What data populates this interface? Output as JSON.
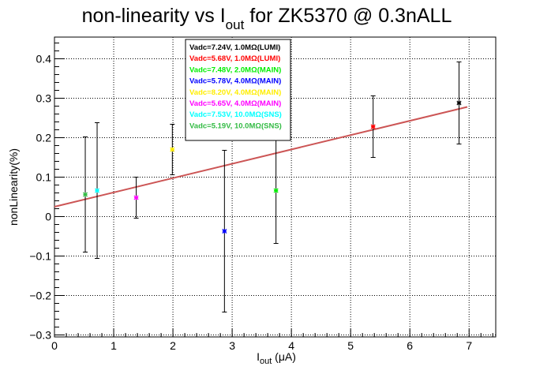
{
  "chart_data": {
    "type": "scatter",
    "title": {
      "pre": "non-linearity vs I",
      "sub": "out",
      "post": " for ZK5370 @ 0.3nALL"
    },
    "xlabel": {
      "main": "I",
      "sub": "out",
      "post": " (μA)"
    },
    "ylabel": "nonLinearity(%)",
    "xlim": [
      0,
      7.45
    ],
    "ylim": [
      -0.305,
      0.455
    ],
    "xticks": [
      "0",
      "1",
      "2",
      "3",
      "4",
      "5",
      "6",
      "7"
    ],
    "yticks": [
      "−0.3",
      "−0.2",
      "−0.1",
      "0",
      "0.1",
      "0.2",
      "0.3",
      "0.4"
    ],
    "grid": true,
    "legend_position": "top-left",
    "series": [
      {
        "name": "Vadc=7.24V, 1.0MΩ(LUMI)",
        "color": "#000000",
        "points": [
          {
            "x": 6.83,
            "y": 0.288,
            "err": 0.104
          }
        ]
      },
      {
        "name": "Vadc=5.68V, 1.0MΩ(LUMI)",
        "color": "#ff0000",
        "points": [
          {
            "x": 5.38,
            "y": 0.228,
            "err": 0.078
          }
        ]
      },
      {
        "name": "Vadc=7.48V, 2.0MΩ(MAIN)",
        "color": "#00ee00",
        "points": [
          {
            "x": 3.74,
            "y": 0.066,
            "err": 0.134
          }
        ]
      },
      {
        "name": "Vadc=5.78V, 4.0MΩ(MAIN)",
        "color": "#0000ff",
        "points": [
          {
            "x": 2.87,
            "y": -0.037,
            "err": 0.205
          }
        ]
      },
      {
        "name": "Vadc=8.20V, 4.0MΩ(MAIN)",
        "color": "#ffee00",
        "points": [
          {
            "x": 1.99,
            "y": 0.17,
            "err": 0.064
          }
        ]
      },
      {
        "name": "Vadc=5.65V, 4.0MΩ(MAIN)",
        "color": "#ff00ff",
        "points": [
          {
            "x": 1.38,
            "y": 0.048,
            "err": 0.052
          }
        ]
      },
      {
        "name": "Vadc=7.53V, 10.0MΩ(SNS)",
        "color": "#00ffff",
        "points": [
          {
            "x": 0.72,
            "y": 0.066,
            "err": 0.172
          }
        ]
      },
      {
        "name": "Vadc=5.19V, 10.0MΩ(SNS)",
        "color": "#33bb44",
        "points": [
          {
            "x": 0.52,
            "y": 0.056,
            "err": 0.146
          }
        ]
      }
    ],
    "fit_line": {
      "x": [
        0,
        6.97
      ],
      "y": [
        0.025,
        0.278
      ],
      "color": "#cc5555"
    }
  }
}
